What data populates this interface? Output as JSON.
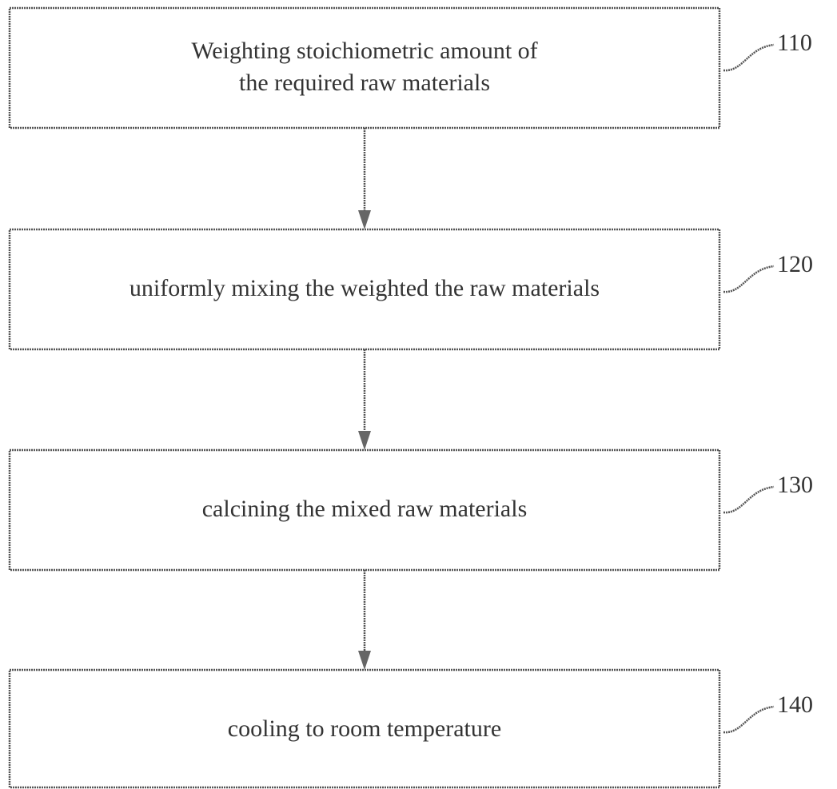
{
  "nodes": [
    {
      "lines": [
        "Weighting stoichiometric amount of",
        "the required raw materials"
      ],
      "ref": "110"
    },
    {
      "lines": [
        "uniformly mixing the weighted the raw materials"
      ],
      "ref": "120"
    },
    {
      "lines": [
        "calcining the mixed raw materials"
      ],
      "ref": "130"
    },
    {
      "lines": [
        "cooling to room temperature"
      ],
      "ref": "140"
    }
  ]
}
